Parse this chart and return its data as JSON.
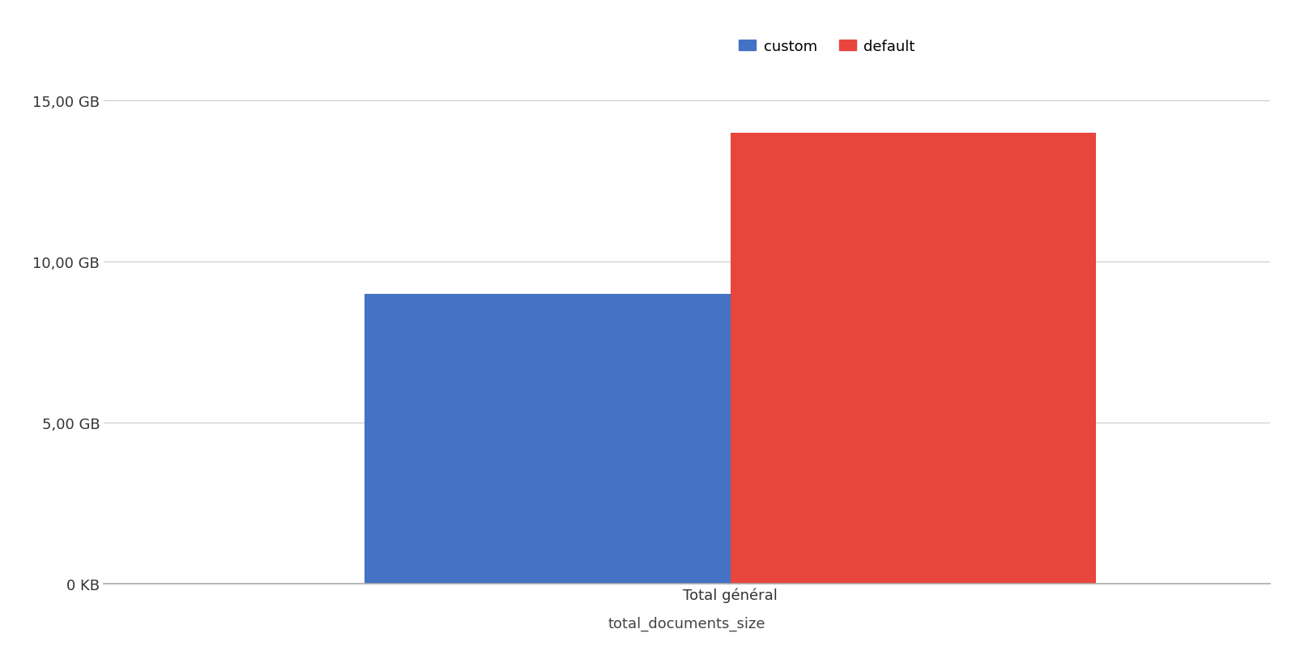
{
  "categories": [
    "Total général"
  ],
  "custom_value": 9.0,
  "default_value": 14.0,
  "custom_color": "#4472C4",
  "default_color": "#E8453C",
  "y_ticks": [
    0,
    5,
    10,
    15
  ],
  "y_tick_labels": [
    "0 KB",
    "5,00 GB",
    "10,00 GB",
    "15,00 GB"
  ],
  "ylim": [
    0,
    16.5
  ],
  "xlabel": "total_documents_size",
  "xlabel2": "Total général",
  "legend_labels": [
    "custom",
    "default"
  ],
  "background_color": "#ffffff",
  "grid_color": "#cccccc",
  "bar_width": 0.42,
  "tick_fontsize": 13,
  "legend_fontsize": 13
}
